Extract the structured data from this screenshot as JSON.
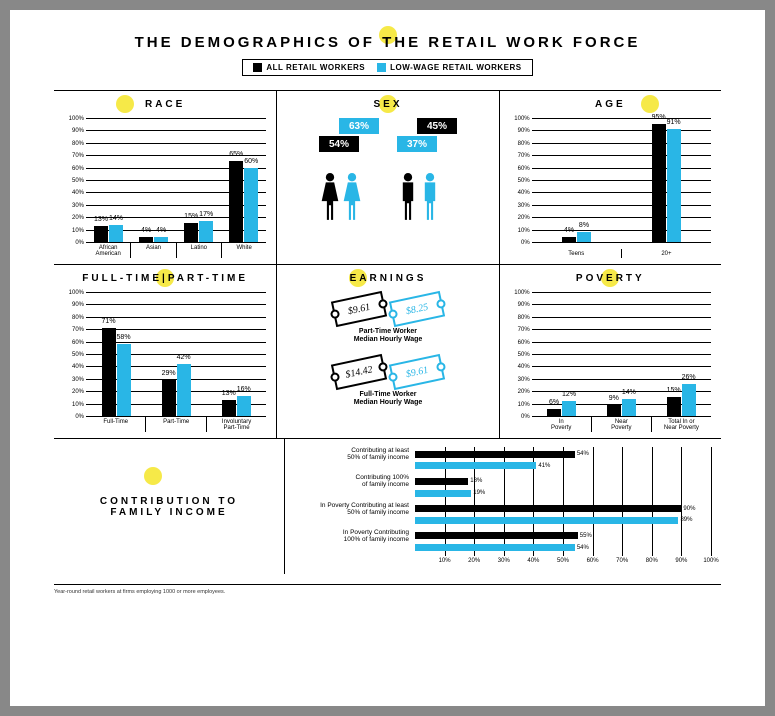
{
  "colors": {
    "all": "#000000",
    "low": "#29b6e6",
    "accent": "#f6e948",
    "grid": "#000000",
    "bg": "#ffffff"
  },
  "title": "THE DEMOGRAPHICS OF THE RETAIL WORK FORCE",
  "legend": {
    "all": "ALL RETAIL WORKERS",
    "low": "LOW-WAGE RETAIL WORKERS"
  },
  "race": {
    "title": "RACE",
    "type": "bar",
    "ylim": [
      0,
      100
    ],
    "ytick_step": 10,
    "categories": [
      "African\nAmerican",
      "Asian",
      "Latino",
      "White"
    ],
    "series_all": [
      13,
      4,
      15,
      65
    ],
    "series_low": [
      14,
      4,
      17,
      60
    ]
  },
  "sex": {
    "title": "SEX",
    "female": {
      "all": 54,
      "low": 63
    },
    "male": {
      "all": 45,
      "low": 37
    }
  },
  "age": {
    "title": "AGE",
    "type": "bar",
    "ylim": [
      0,
      100
    ],
    "ytick_step": 10,
    "categories": [
      "Teens",
      "20+"
    ],
    "series_all": [
      4,
      95
    ],
    "series_low": [
      8,
      91
    ]
  },
  "ftpt": {
    "title": "FULL-TIME|PART-TIME",
    "type": "bar",
    "ylim": [
      0,
      100
    ],
    "ytick_step": 10,
    "categories": [
      "Full-Time",
      "Part-Time",
      "Involuntary\nPart-Time"
    ],
    "series_all": [
      71,
      29,
      13
    ],
    "series_low": [
      58,
      42,
      16
    ]
  },
  "earnings": {
    "title": "EARNINGS",
    "part_time": {
      "all": "$9.61",
      "low": "$8.25",
      "label": "Part-Time Worker\nMedian Hourly Wage"
    },
    "full_time": {
      "all": "$14.42",
      "low": "$9.61",
      "label": "Full-Time Worker\nMedian Hourly Wage"
    }
  },
  "poverty": {
    "title": "POVERTY",
    "type": "bar",
    "ylim": [
      0,
      100
    ],
    "ytick_step": 10,
    "categories": [
      "In\nPoverty",
      "Near\nPoverty",
      "Total In or\nNear Poverty"
    ],
    "series_all": [
      6,
      9,
      15
    ],
    "series_low": [
      12,
      14,
      26
    ]
  },
  "contribution": {
    "title": "CONTRIBUTION TO\nFAMILY INCOME",
    "type": "hbar",
    "xlim": [
      0,
      100
    ],
    "xtick_step": 10,
    "rows": [
      {
        "label": "Contributing at least\n50% of family income",
        "all": 54,
        "low": 41
      },
      {
        "label": "Contributing 100%\nof family income",
        "all": 18,
        "low": 19
      },
      {
        "label": "In Poverty Contributing at least\n50% of family income",
        "all": 90,
        "low": 89
      },
      {
        "label": "In Poverty Contributing\n100% of family income",
        "all": 55,
        "low": 54
      }
    ]
  },
  "footnote": "Year-round retail workers at firms employing 1000 or more employees."
}
